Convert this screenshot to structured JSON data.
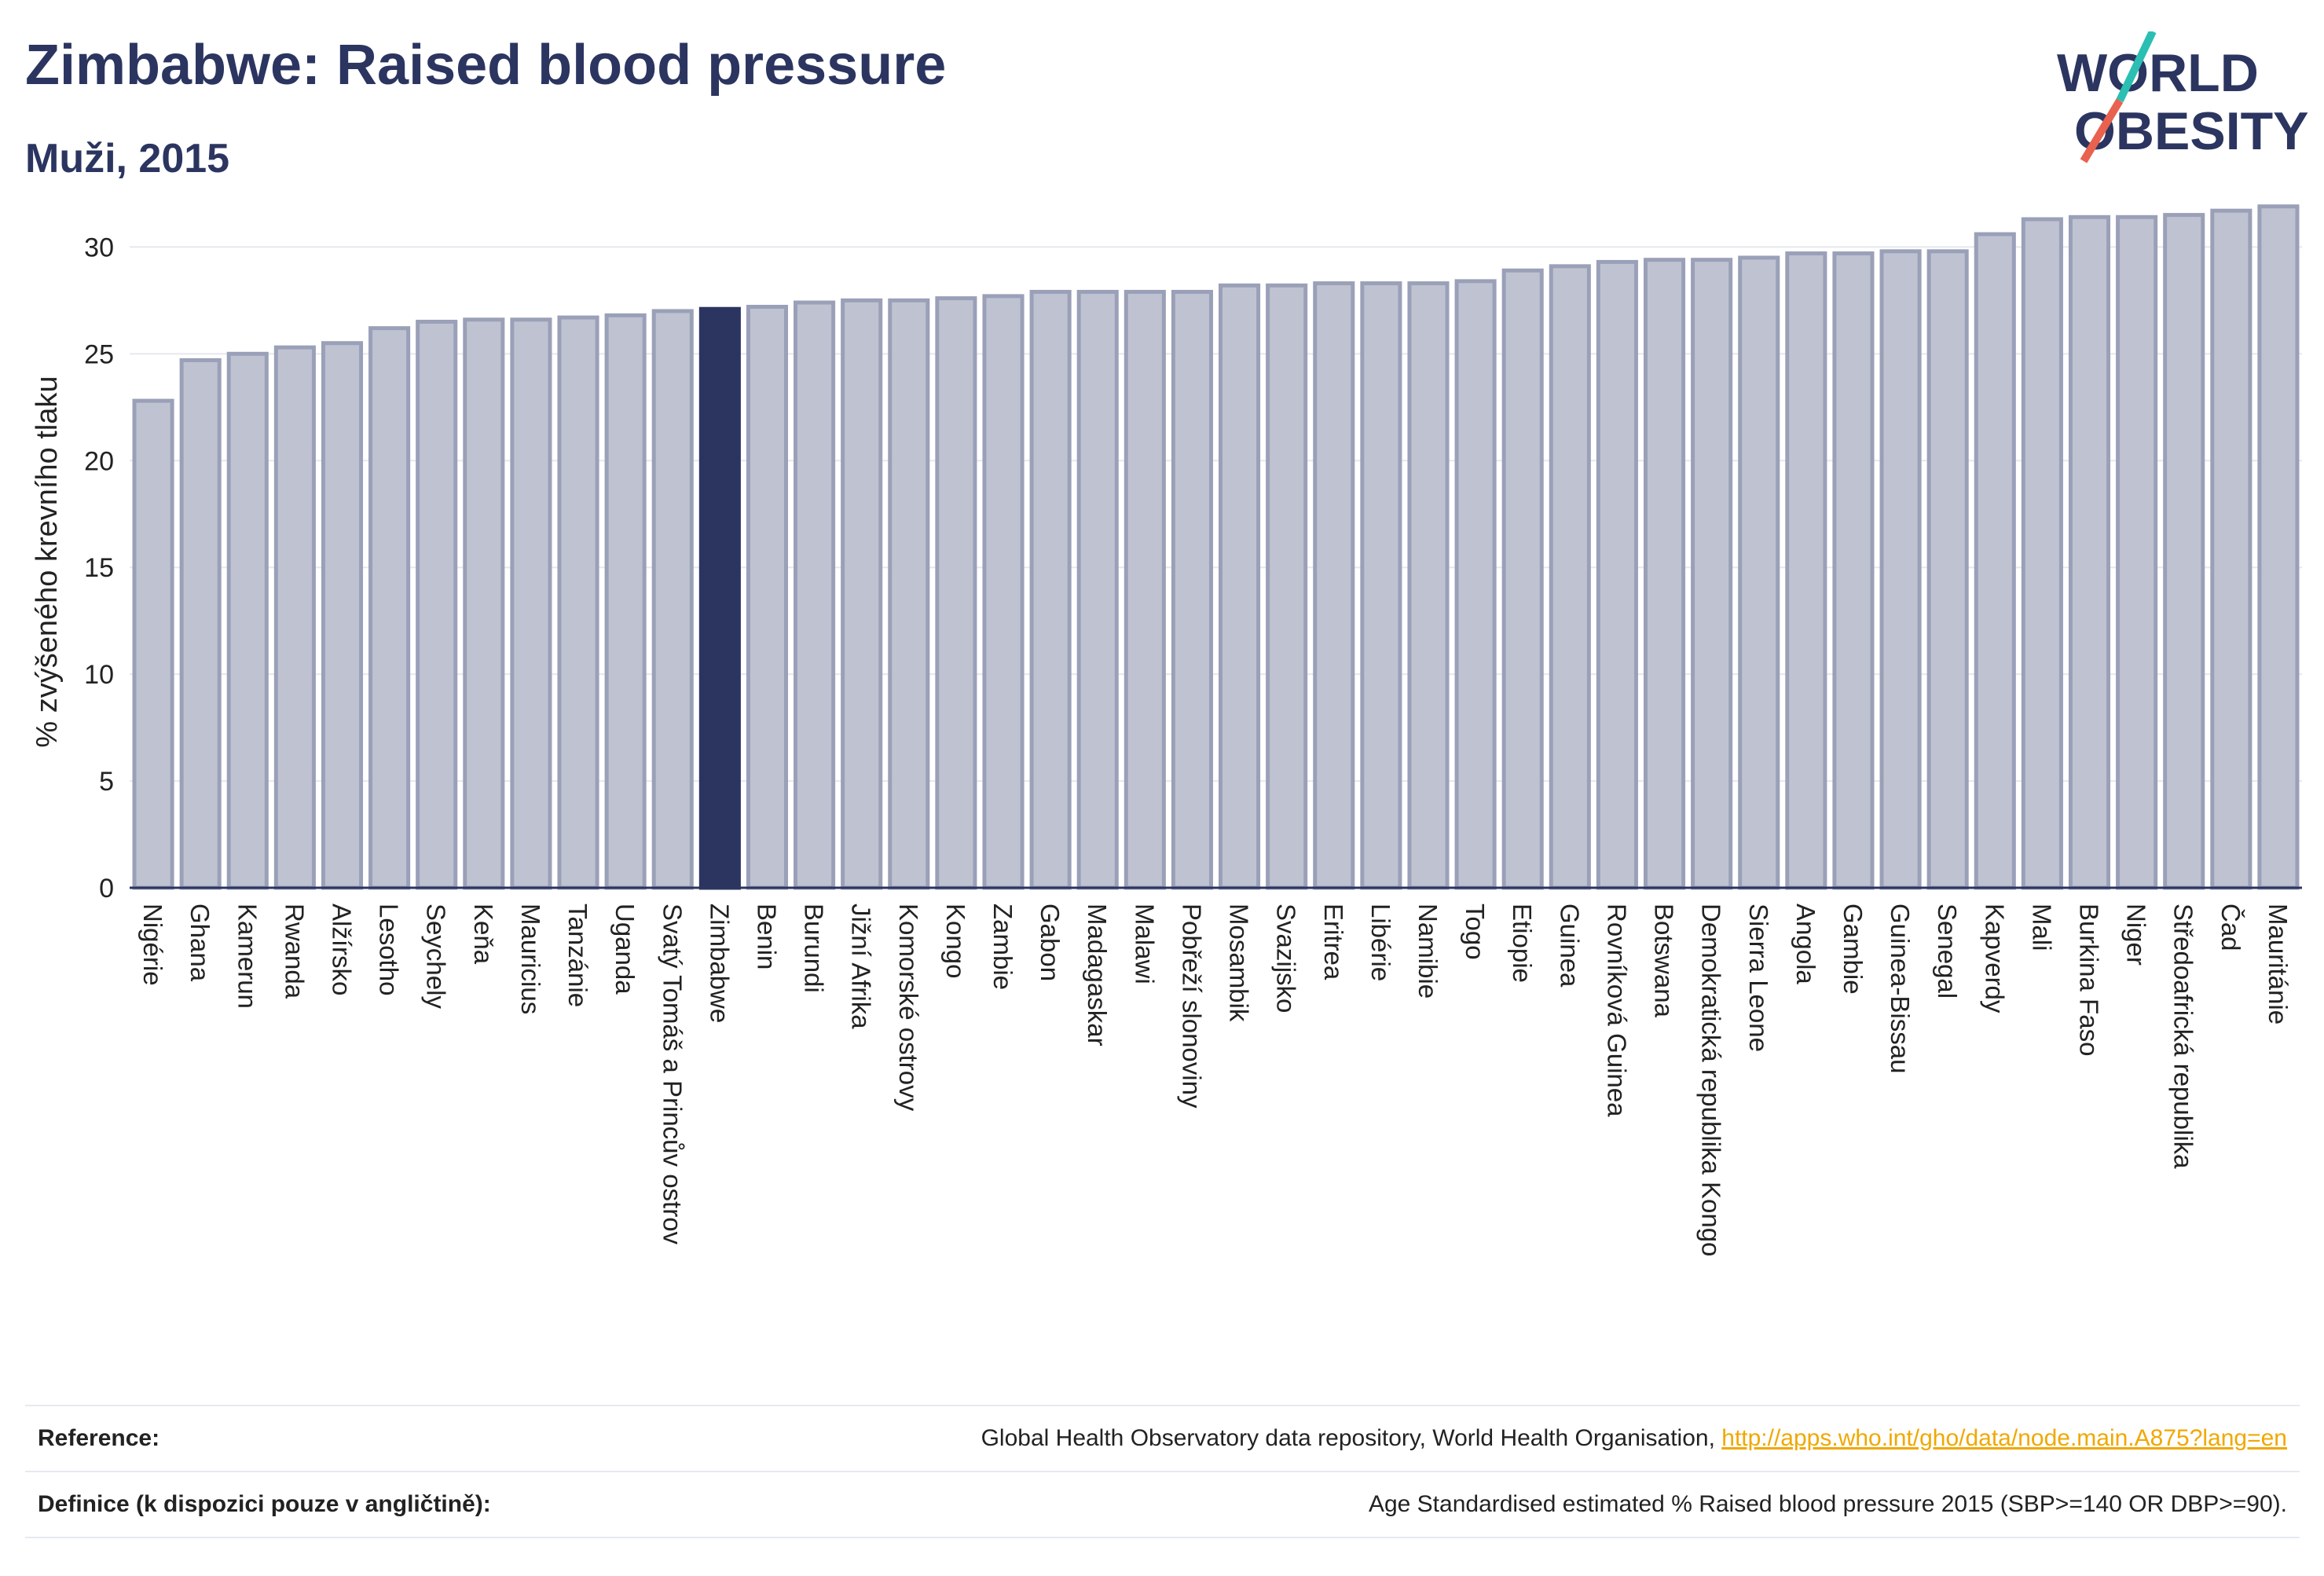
{
  "title": "Zimbabwe: Raised blood pressure",
  "subtitle": "Muži, 2015",
  "logo": {
    "line1": "WORLD",
    "line2": "OBESITY",
    "accent_colors": [
      "#2bbfb3",
      "#e8624f"
    ]
  },
  "colors": {
    "bar": "#bfc3d1",
    "bar_stroke": "#9aa0b8",
    "highlight": "#2b3560",
    "grid": "#e6e8ee",
    "axis": "#2b3560"
  },
  "footer": {
    "reference_label": "Reference:",
    "reference_text": "Global Health Observatory data repository, World Health Organisation, ",
    "reference_link": "http://apps.who.int/gho/data/node.main.A875?lang=en",
    "definition_label": "Definice (k dispozici pouze v angličtině):",
    "definition_text": "Age Standardised estimated % Raised blood pressure 2015 (SBP>=140 OR DBP>=90)."
  },
  "chart_data": {
    "type": "bar",
    "ylabel": "% zvýšeného krevního tlaku",
    "ylim": [
      0,
      32
    ],
    "yticks": [
      0,
      5,
      10,
      15,
      20,
      25,
      30
    ],
    "grid": true,
    "highlight": "Zimbabwe",
    "categories": [
      "Nigérie",
      "Ghana",
      "Kamerun",
      "Rwanda",
      "Alžírsko",
      "Lesotho",
      "Seychely",
      "Keňa",
      "Mauricius",
      "Tanzánie",
      "Uganda",
      "Svatý Tomáš a Princův ostrov",
      "Zimbabwe",
      "Benin",
      "Burundi",
      "Jižní Afrika",
      "Komorské ostrovy",
      "Kongo",
      "Zambie",
      "Gabon",
      "Madagaskar",
      "Malawi",
      "Pobřeží slonoviny",
      "Mosambik",
      "Svazijsko",
      "Eritrea",
      "Libérie",
      "Namibie",
      "Togo",
      "Etiopie",
      "Guinea",
      "Rovníková Guinea",
      "Botswana",
      "Demokratická republika Kongo",
      "Sierra Leone",
      "Angola",
      "Gambie",
      "Guinea-Bissau",
      "Senegal",
      "Kapverdy",
      "Mali",
      "Burkina Faso",
      "Niger",
      "Středoafrická republika",
      "Čad",
      "Mauritánie"
    ],
    "values": [
      22.8,
      24.7,
      25.0,
      25.3,
      25.5,
      26.2,
      26.5,
      26.6,
      26.6,
      26.7,
      26.8,
      27.0,
      27.1,
      27.2,
      27.4,
      27.5,
      27.5,
      27.6,
      27.7,
      27.9,
      27.9,
      27.9,
      27.9,
      28.2,
      28.2,
      28.3,
      28.3,
      28.3,
      28.4,
      28.9,
      29.1,
      29.3,
      29.4,
      29.4,
      29.5,
      29.7,
      29.7,
      29.8,
      29.8,
      30.6,
      31.3,
      31.4,
      31.4,
      31.5,
      31.7,
      31.9
    ]
  }
}
